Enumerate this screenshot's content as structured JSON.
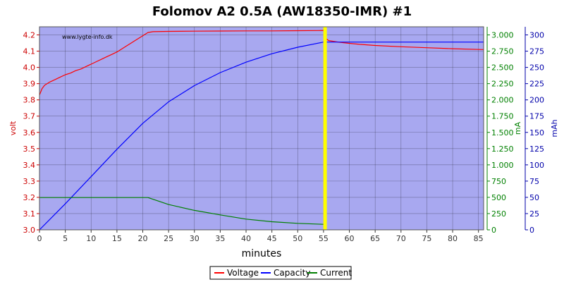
{
  "chart_data": {
    "type": "line",
    "title": "Folomov A2 0.5A (AW18350-IMR) #1",
    "watermark": "www.lygte-info.dk",
    "xlabel": "minutes",
    "xlim": [
      0,
      86
    ],
    "xticks": [
      0,
      5,
      10,
      15,
      20,
      25,
      30,
      35,
      40,
      45,
      50,
      55,
      60,
      65,
      70,
      75,
      80,
      85
    ],
    "axes": {
      "volt": {
        "label": "volt",
        "color": "#cc0000",
        "range": [
          3.0,
          4.25
        ],
        "ticks": [
          "3.0",
          "3.1",
          "3.2",
          "3.3",
          "3.4",
          "3.5",
          "3.6",
          "3.7",
          "3.8",
          "3.9",
          "4.0",
          "4.1",
          "4.2"
        ]
      },
      "mA": {
        "label": "mA",
        "color": "#008000",
        "range": [
          0,
          3125
        ],
        "ticks": [
          "0",
          "250",
          "500",
          "750",
          "1.000",
          "1.250",
          "1.500",
          "1.750",
          "2.000",
          "2.250",
          "2.500",
          "2.750",
          "3.000"
        ]
      },
      "mAh": {
        "label": "mAh",
        "color": "#0000aa",
        "range": [
          0,
          312.5
        ],
        "ticks": [
          "0",
          "25",
          "50",
          "75",
          "100",
          "125",
          "150",
          "175",
          "200",
          "225",
          "250",
          "275",
          "300"
        ]
      }
    },
    "marker": {
      "x": 55.3,
      "color": "#ffff00"
    },
    "grid": true,
    "legend_position": "bottom-center",
    "series": [
      {
        "name": "Voltage",
        "axis": "volt",
        "color": "#ff0000",
        "x": [
          0,
          0.5,
          1,
          2,
          3,
          4,
          5,
          6,
          7,
          8,
          9,
          10,
          11,
          12,
          13,
          14,
          15,
          16,
          17,
          18,
          19,
          20,
          21,
          22,
          25,
          30,
          35,
          40,
          45,
          50,
          54,
          55,
          55.4,
          56,
          58,
          60,
          62,
          65,
          70,
          75,
          80,
          86
        ],
        "y": [
          3.83,
          3.87,
          3.89,
          3.91,
          3.925,
          3.94,
          3.955,
          3.965,
          3.98,
          3.99,
          4.005,
          4.02,
          4.035,
          4.05,
          4.065,
          4.08,
          4.095,
          4.115,
          4.135,
          4.155,
          4.175,
          4.195,
          4.215,
          4.22,
          4.222,
          4.223,
          4.224,
          4.225,
          4.225,
          4.226,
          4.227,
          4.228,
          4.18,
          4.165,
          4.155,
          4.148,
          4.142,
          4.135,
          4.127,
          4.121,
          4.115,
          4.11
        ]
      },
      {
        "name": "Capacity",
        "axis": "mAh",
        "color": "#0000ff",
        "x": [
          0,
          5,
          10,
          15,
          20,
          25,
          30,
          35,
          40,
          45,
          50,
          55,
          55.4,
          86
        ],
        "y": [
          0,
          40,
          82,
          124,
          164,
          197,
          222,
          242,
          258,
          271,
          281,
          289,
          289,
          289
        ]
      },
      {
        "name": "Current",
        "axis": "mA",
        "color": "#008000",
        "x": [
          0,
          5,
          10,
          15,
          20,
          21,
          22,
          25,
          30,
          35,
          40,
          45,
          50,
          55,
          55.4
        ],
        "y": [
          497,
          497,
          497,
          497,
          497,
          497,
          470,
          390,
          300,
          230,
          165,
          125,
          100,
          85,
          85
        ]
      }
    ]
  }
}
